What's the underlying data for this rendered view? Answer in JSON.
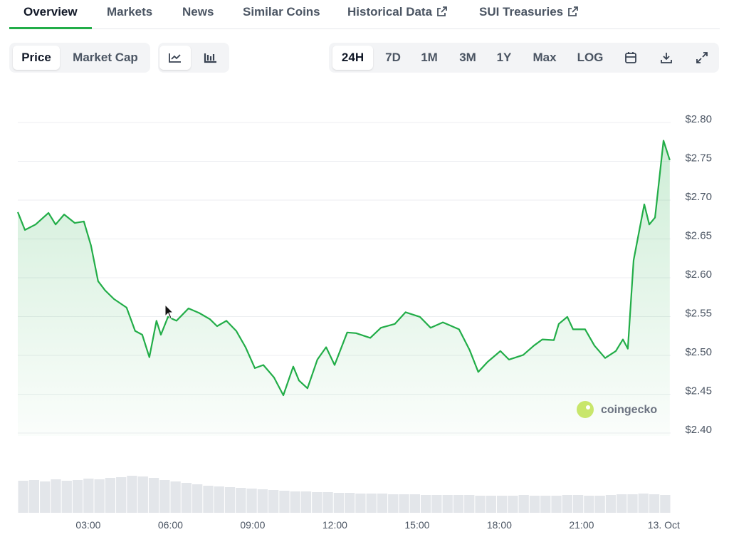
{
  "tabs": [
    {
      "label": "Overview",
      "active": true,
      "external": false
    },
    {
      "label": "Markets",
      "active": false,
      "external": false
    },
    {
      "label": "News",
      "active": false,
      "external": false
    },
    {
      "label": "Similar Coins",
      "active": false,
      "external": false
    },
    {
      "label": "Historical Data",
      "active": false,
      "external": true
    },
    {
      "label": "SUI Treasuries",
      "active": false,
      "external": true
    }
  ],
  "metrics": [
    {
      "label": "Price",
      "active": true
    },
    {
      "label": "Market Cap",
      "active": false
    }
  ],
  "ranges": [
    {
      "label": "24H",
      "active": true
    },
    {
      "label": "7D",
      "active": false
    },
    {
      "label": "1M",
      "active": false
    },
    {
      "label": "3M",
      "active": false
    },
    {
      "label": "1Y",
      "active": false
    },
    {
      "label": "Max",
      "active": false
    },
    {
      "label": "LOG",
      "active": false
    }
  ],
  "watermark": "coingecko",
  "chart_data": {
    "type": "line",
    "color": "#22ad48",
    "x": [
      0.43,
      0.69,
      1.08,
      1.55,
      1.81,
      2.12,
      2.51,
      2.84,
      3.1,
      3.36,
      3.62,
      3.94,
      4.4,
      4.71,
      4.97,
      5.23,
      5.49,
      5.65,
      5.91,
      6.22,
      6.66,
      7.05,
      7.44,
      7.7,
      8.04,
      8.4,
      8.74,
      9.08,
      9.39,
      9.78,
      10.12,
      10.48,
      10.69,
      11.0,
      11.36,
      11.68,
      11.99,
      12.45,
      12.77,
      13.29,
      13.68,
      14.19,
      14.58,
      15.1,
      15.49,
      15.94,
      16.53,
      16.92,
      17.23,
      17.57,
      18.04,
      18.35,
      18.87,
      19.26,
      19.57,
      19.99,
      20.17,
      20.48,
      20.69,
      21.13,
      21.47,
      21.86,
      22.25,
      22.51,
      22.69,
      22.9,
      23.29,
      23.47,
      23.68,
      23.99,
      24.22
    ],
    "values": [
      2.68,
      2.657,
      2.664,
      2.679,
      2.664,
      2.677,
      2.666,
      2.668,
      2.637,
      2.591,
      2.579,
      2.568,
      2.557,
      2.527,
      2.522,
      2.493,
      2.54,
      2.522,
      2.545,
      2.54,
      2.556,
      2.55,
      2.542,
      2.533,
      2.54,
      2.527,
      2.506,
      2.479,
      2.483,
      2.467,
      2.444,
      2.481,
      2.463,
      2.453,
      2.49,
      2.506,
      2.483,
      2.525,
      2.524,
      2.518,
      2.531,
      2.536,
      2.551,
      2.545,
      2.531,
      2.538,
      2.529,
      2.502,
      2.474,
      2.487,
      2.501,
      2.49,
      2.496,
      2.508,
      2.516,
      2.515,
      2.536,
      2.545,
      2.529,
      2.529,
      2.508,
      2.492,
      2.501,
      2.516,
      2.504,
      2.618,
      2.69,
      2.664,
      2.673,
      2.772,
      2.747
    ],
    "xlim": [
      0.43,
      24.25
    ],
    "xticks": [
      {
        "value": 3,
        "label": "03:00"
      },
      {
        "value": 6,
        "label": "06:00"
      },
      {
        "value": 9,
        "label": "09:00"
      },
      {
        "value": 12,
        "label": "12:00"
      },
      {
        "value": 15,
        "label": "15:00"
      },
      {
        "value": 18,
        "label": "18:00"
      },
      {
        "value": 21,
        "label": "21:00"
      },
      {
        "value": 24,
        "label": "13. Oct"
      }
    ],
    "ylim": [
      2.4,
      2.8
    ],
    "yticks": [
      {
        "value": 2.8,
        "label": "$2.80"
      },
      {
        "value": 2.75,
        "label": "$2.75"
      },
      {
        "value": 2.7,
        "label": "$2.70"
      },
      {
        "value": 2.65,
        "label": "$2.65"
      },
      {
        "value": 2.6,
        "label": "$2.60"
      },
      {
        "value": 2.55,
        "label": "$2.55"
      },
      {
        "value": 2.5,
        "label": "$2.50"
      },
      {
        "value": 2.45,
        "label": "$2.45"
      },
      {
        "value": 2.4,
        "label": "$2.40"
      }
    ],
    "grid": true,
    "volume": {
      "color": "#e3e6ea",
      "values": [
        45,
        46,
        44,
        47,
        45,
        46,
        48,
        47,
        49,
        50,
        52,
        51,
        49,
        46,
        44,
        42,
        40,
        38,
        37,
        36,
        35,
        34,
        33,
        32,
        31,
        30,
        30,
        29,
        29,
        28,
        28,
        27,
        27,
        27,
        26,
        26,
        26,
        25,
        25,
        25,
        25,
        25,
        24,
        24,
        24,
        24,
        25,
        24,
        24,
        24,
        25,
        25,
        24,
        24,
        25,
        26,
        26,
        27,
        26,
        25
      ]
    }
  }
}
